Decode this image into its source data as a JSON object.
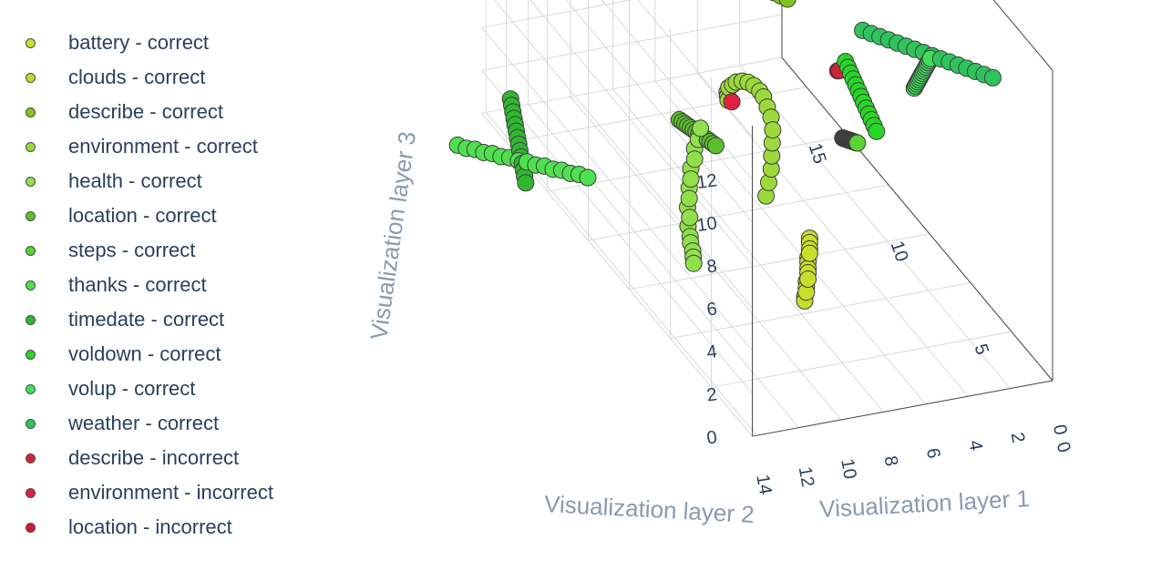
{
  "chart_data": {
    "type": "scatter3d",
    "axes": {
      "x": {
        "title": "Visualization layer 1",
        "ticks": [
          "15",
          "10",
          "5",
          "0"
        ]
      },
      "y": {
        "title": "Visualization layer 2",
        "ticks": [
          "14",
          "12",
          "10",
          "8",
          "6",
          "4",
          "2",
          "0"
        ]
      },
      "z": {
        "title": "Visualization layer 3",
        "ticks": [
          "0",
          "2",
          "4",
          "6",
          "8",
          "10",
          "12"
        ]
      }
    },
    "legend": [
      {
        "name": "battery - correct",
        "color": "#c8e02a"
      },
      {
        "name": "clouds - correct",
        "color": "#bcdc2e"
      },
      {
        "name": "describe - correct",
        "color": "#84c41e"
      },
      {
        "name": "environment - correct",
        "color": "#9cd93a"
      },
      {
        "name": "health - correct",
        "color": "#8fe04a"
      },
      {
        "name": "location - correct",
        "color": "#5bbf2a"
      },
      {
        "name": "steps - correct",
        "color": "#58d334"
      },
      {
        "name": "thanks - correct",
        "color": "#4fe04f"
      },
      {
        "name": "timedate - correct",
        "color": "#2fb82f"
      },
      {
        "name": "voldown - correct",
        "color": "#27d627"
      },
      {
        "name": "volup - correct",
        "color": "#3ee05a"
      },
      {
        "name": "weather - correct",
        "color": "#2ec45c"
      },
      {
        "name": "describe - incorrect",
        "color": "#d2233a"
      },
      {
        "name": "environment - incorrect",
        "color": "#e02040"
      },
      {
        "name": "location - incorrect",
        "color": "#c81e34"
      }
    ],
    "series": [
      {
        "name": "battery - correct",
        "color": "#c8e02a",
        "x": [
          4.5,
          4.5,
          4.5,
          4.5,
          4.6,
          4.6,
          4.6,
          4.6,
          4.6,
          4.7,
          4.7,
          4.7,
          4.8,
          4.8
        ],
        "y": [
          8.0,
          8.0,
          8.0,
          8.0,
          8.0,
          8.0,
          8.0,
          8.0,
          8.0,
          8.0,
          8.0,
          8.0,
          8.0,
          8.0
        ],
        "z": [
          4.0,
          3.8,
          3.5,
          3.3,
          3.0,
          2.8,
          2.5,
          2.3,
          2.0,
          1.8,
          1.5,
          1.3,
          1.0,
          0.8
        ]
      },
      {
        "name": "clouds - correct",
        "color": "#bcdc2e",
        "x": [
          12.0,
          12.2,
          12.4,
          12.6,
          12.8,
          13.0,
          13.2,
          13.4,
          13.6,
          13.8,
          14.0,
          14.2,
          14.4,
          14.6,
          14.8,
          15.0,
          15.2,
          15.4,
          15.6,
          15.8,
          16.0,
          16.2,
          16.4,
          16.6,
          16.8,
          17.0
        ],
        "y": [
          3.0,
          3.2,
          3.4,
          3.6,
          3.8,
          4.0,
          4.2,
          4.4,
          4.6,
          4.8,
          5.0,
          5.2,
          5.4,
          5.6,
          5.8,
          6.0,
          6.2,
          6.4,
          6.6,
          6.8,
          7.0,
          7.2,
          7.4,
          7.6,
          7.8,
          8.0
        ],
        "z": [
          9.5,
          9.3,
          9.1,
          8.9,
          8.7,
          8.5,
          8.3,
          8.1,
          7.9,
          7.7,
          7.5,
          7.3,
          7.1,
          6.9,
          6.7,
          6.5,
          6.3,
          6.1,
          5.9,
          5.7,
          5.5,
          5.3,
          5.1,
          4.9,
          4.7,
          4.5
        ]
      },
      {
        "name": "describe - correct",
        "color": "#84c41e",
        "x": [
          11.0,
          11.3,
          11.6,
          11.9,
          12.2,
          12.5,
          12.8,
          13.1,
          13.4,
          13.7,
          14.0,
          14.3,
          14.6,
          14.9,
          15.2,
          15.5,
          15.8,
          16.1,
          16.4,
          16.7
        ],
        "y": [
          4.0,
          4.1,
          4.2,
          4.3,
          4.4,
          4.5,
          4.6,
          4.7,
          4.8,
          4.9,
          5.0,
          5.1,
          5.2,
          5.3,
          5.4,
          5.5,
          5.6,
          5.7,
          5.8,
          5.9
        ],
        "z": [
          8.5,
          8.4,
          8.3,
          8.2,
          8.1,
          8.0,
          7.9,
          7.8,
          7.7,
          7.6,
          7.5,
          7.4,
          7.3,
          7.2,
          7.1,
          7.0,
          6.9,
          6.8,
          6.7,
          6.6
        ]
      },
      {
        "name": "environment - correct",
        "color": "#9cd93a",
        "x": [
          2.0,
          2.1,
          2.2,
          2.3,
          2.4,
          2.5,
          2.6,
          2.7,
          2.8,
          2.9,
          3.0,
          3.1,
          3.2,
          3.3,
          3.4,
          3.5,
          3.6,
          3.7,
          3.8
        ],
        "y": [
          12.0,
          11.8,
          11.6,
          11.5,
          11.4,
          11.3,
          11.3,
          11.4,
          11.5,
          11.6,
          11.8,
          12.0,
          12.2,
          12.4,
          12.5,
          12.6,
          12.6,
          12.5,
          12.4
        ],
        "z": [
          9.0,
          9.5,
          10.0,
          10.5,
          11.0,
          11.5,
          12.0,
          12.4,
          12.8,
          13.0,
          13.2,
          13.3,
          13.3,
          13.2,
          13.0,
          12.8,
          12.5,
          12.2,
          11.9
        ]
      },
      {
        "name": "health - correct",
        "color": "#8fe04a",
        "x": [
          6.0,
          6.0,
          6.1,
          6.1,
          6.2,
          6.2,
          6.3,
          6.3,
          6.4,
          6.4,
          6.5,
          6.5,
          6.6,
          6.6,
          6.7,
          6.8
        ],
        "y": [
          12.0,
          12.1,
          12.2,
          12.2,
          12.3,
          12.3,
          12.3,
          12.3,
          12.3,
          12.2,
          12.2,
          12.1,
          12.0,
          11.9,
          11.8,
          11.7
        ],
        "z": [
          8.5,
          8.0,
          7.5,
          7.0,
          6.5,
          6.0,
          5.5,
          5.0,
          4.5,
          4.0,
          3.5,
          3.0,
          2.6,
          2.2,
          1.8,
          1.4
        ]
      },
      {
        "name": "location - correct",
        "color": "#5bbf2a",
        "x": [
          7.0,
          7.3,
          7.6,
          7.9,
          8.2,
          8.5,
          8.8,
          9.1,
          9.4,
          9.7,
          10.0,
          10.3,
          10.6,
          10.9
        ],
        "y": [
          10.5,
          10.4,
          10.3,
          10.2,
          10.1,
          10.0,
          9.9,
          9.8,
          9.7,
          9.6,
          9.5,
          9.4,
          9.3,
          9.2
        ],
        "z": [
          6.5,
          6.3,
          6.1,
          5.9,
          5.7,
          5.5,
          5.3,
          5.1,
          4.9,
          4.7,
          4.5,
          4.3,
          4.1,
          3.9
        ]
      },
      {
        "name": "steps - correct",
        "color": "#58d334",
        "x": [
          11.5,
          11.2,
          10.9,
          10.6,
          10.3,
          10.0,
          9.7,
          9.4,
          9.1,
          8.8,
          8.5,
          8.2,
          7.9,
          7.6,
          7.3,
          7.0,
          6.7,
          6.4,
          6.1,
          5.8,
          5.5,
          5.2
        ],
        "y": [
          1.0,
          1.2,
          1.4,
          1.6,
          1.8,
          2.0,
          2.2,
          2.4,
          2.6,
          2.8,
          3.0,
          3.2,
          3.4,
          3.6,
          3.8,
          4.0,
          4.2,
          4.4,
          4.6,
          4.8,
          5.0,
          5.2
        ],
        "z": [
          1.0,
          1.3,
          1.6,
          1.9,
          2.2,
          2.5,
          2.8,
          3.1,
          3.4,
          3.7,
          4.0,
          4.3,
          4.6,
          4.9,
          5.2,
          5.5,
          5.8,
          6.1,
          6.4,
          6.7,
          7.0,
          7.3
        ]
      },
      {
        "name": "thanks - correct",
        "color": "#4fe04f",
        "x": [
          9.0,
          9.4,
          9.8,
          10.2,
          10.6,
          11.0,
          11.4,
          11.8,
          12.2,
          12.6,
          13.0,
          13.4,
          13.8,
          14.2,
          14.6,
          15.0
        ],
        "y": [
          15.0,
          15.1,
          15.2,
          15.3,
          15.4,
          15.5,
          15.6,
          15.7,
          15.8,
          15.9,
          16.0,
          16.1,
          16.2,
          16.3,
          16.4,
          16.5
        ],
        "z": [
          4.0,
          3.8,
          3.5,
          3.3,
          3.0,
          2.8,
          2.5,
          2.3,
          2.0,
          1.8,
          1.5,
          1.3,
          1.0,
          0.8,
          0.5,
          0.3
        ]
      },
      {
        "name": "timedate - correct",
        "color": "#2fb82f",
        "x": [
          15.0,
          14.8,
          14.6,
          14.4,
          14.2,
          14.0,
          13.8,
          13.6,
          13.4,
          13.2,
          13.0,
          12.8,
          12.6,
          12.4
        ],
        "y": [
          14.0,
          14.1,
          14.2,
          14.3,
          14.4,
          14.5,
          14.6,
          14.7,
          14.8,
          14.9,
          15.0,
          15.1,
          15.2,
          15.3
        ],
        "z": [
          2.0,
          1.9,
          1.8,
          1.7,
          1.6,
          1.5,
          1.4,
          1.3,
          1.2,
          1.1,
          1.0,
          0.9,
          0.8,
          0.7
        ]
      },
      {
        "name": "voldown - correct",
        "color": "#27d627",
        "x": [
          3.0,
          2.9,
          2.8,
          2.7,
          2.6,
          2.5,
          2.4,
          2.3,
          2.2,
          2.1,
          2.0,
          1.9,
          1.8
        ],
        "y": [
          6.0,
          6.2,
          6.4,
          6.6,
          6.8,
          7.0,
          7.2,
          7.4,
          7.6,
          7.8,
          8.0,
          8.2,
          8.4
        ],
        "z": [
          10.0,
          10.4,
          10.8,
          11.2,
          11.6,
          12.0,
          12.4,
          12.8,
          13.2,
          13.6,
          14.0,
          14.4,
          14.8
        ]
      },
      {
        "name": "volup - correct",
        "color": "#3ee05a",
        "x": [
          6.5,
          6.3,
          6.1,
          5.9,
          5.7,
          5.5,
          5.3,
          5.1,
          4.9,
          4.7,
          4.5,
          4.3,
          4.1,
          3.9,
          3.7
        ],
        "y": [
          1.5,
          1.6,
          1.7,
          1.8,
          1.9,
          2.0,
          2.1,
          2.2,
          2.3,
          2.4,
          2.5,
          2.6,
          2.7,
          2.8,
          2.9
        ],
        "z": [
          8.0,
          8.3,
          8.6,
          8.9,
          9.2,
          9.5,
          9.8,
          10.1,
          10.4,
          10.7,
          11.0,
          11.3,
          11.6,
          11.9,
          12.2
        ]
      },
      {
        "name": "weather - correct",
        "color": "#2ec45c",
        "x": [
          3.0,
          3.4,
          3.8,
          4.2,
          4.6,
          5.0,
          5.4,
          5.8,
          6.2,
          6.6,
          7.0,
          7.4,
          7.8,
          8.2,
          8.6,
          9.0
        ],
        "y": [
          0.5,
          0.6,
          0.7,
          0.8,
          0.9,
          1.0,
          1.1,
          1.2,
          1.3,
          1.4,
          1.5,
          1.6,
          1.7,
          1.8,
          1.9,
          2.0
        ],
        "z": [
          11.5,
          11.3,
          11.1,
          10.9,
          10.7,
          10.5,
          10.3,
          10.1,
          9.9,
          9.7,
          9.5,
          9.3,
          9.1,
          8.9,
          8.7,
          8.5
        ]
      },
      {
        "name": "describe - incorrect",
        "color": "#d2233a",
        "x": [
          2.3
        ],
        "y": [
          8.3
        ],
        "z": [
          13.9
        ]
      },
      {
        "name": "environment - incorrect",
        "color": "#e02040",
        "x": [
          3.7
        ],
        "y": [
          12.3
        ],
        "z": [
          11.9
        ]
      },
      {
        "name": "location - incorrect",
        "color": "#c81e34",
        "x": [
          2.4
        ],
        "y": [
          8.3
        ],
        "z": [
          13.8
        ]
      }
    ]
  }
}
